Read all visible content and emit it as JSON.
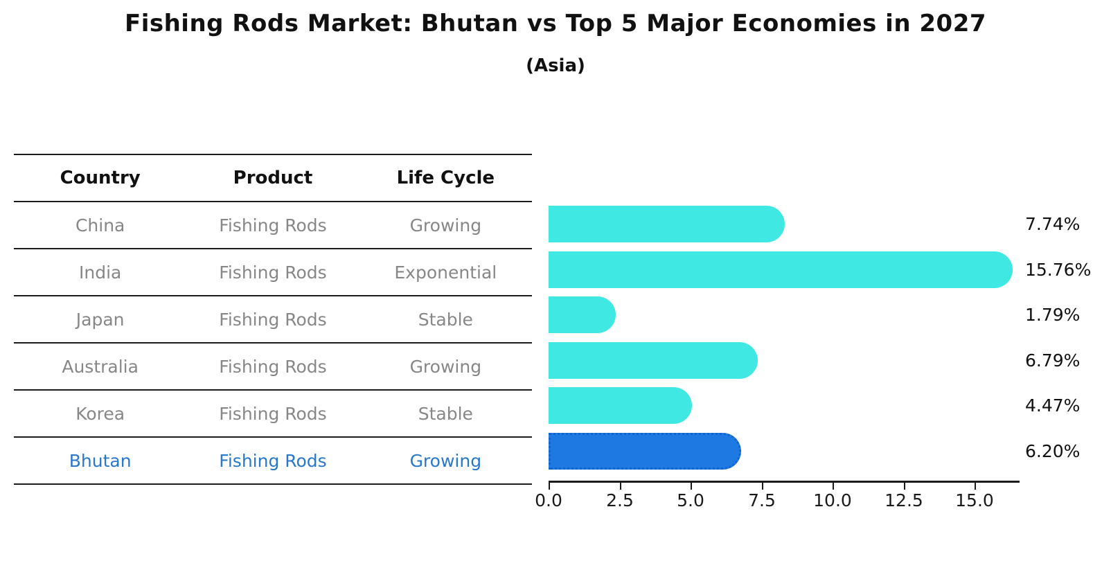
{
  "header": {
    "title": "Fishing Rods Market: Bhutan vs Top 5 Major Economies in 2027",
    "subtitle": "(Asia)"
  },
  "table": {
    "headers": [
      "Country",
      "Product",
      "Life Cycle"
    ],
    "rows": [
      {
        "country": "China",
        "product": "Fishing Rods",
        "life_cycle": "Growing",
        "highlighted": false
      },
      {
        "country": "India",
        "product": "Fishing Rods",
        "life_cycle": "Exponential",
        "highlighted": false
      },
      {
        "country": "Japan",
        "product": "Fishing Rods",
        "life_cycle": "Stable",
        "highlighted": false
      },
      {
        "country": "Australia",
        "product": "Fishing Rods",
        "life_cycle": "Growing",
        "highlighted": false
      },
      {
        "country": "Korea",
        "product": "Fishing Rods",
        "life_cycle": "Stable",
        "highlighted": false
      },
      {
        "country": "Bhutan",
        "product": "Fishing Rods",
        "life_cycle": "Growing",
        "highlighted": true
      }
    ]
  },
  "chart_data": {
    "type": "bar",
    "orientation": "horizontal",
    "title": "Fishing Rods Market: Bhutan vs Top 5 Major Economies in 2027",
    "subtitle": "(Asia)",
    "categories": [
      "China",
      "India",
      "Japan",
      "Australia",
      "Korea",
      "Bhutan"
    ],
    "values": [
      7.74,
      15.76,
      1.79,
      6.79,
      4.47,
      6.2
    ],
    "value_labels": [
      "7.74%",
      "15.76%",
      "1.79%",
      "6.79%",
      "4.47%",
      "6.20%"
    ],
    "xlim": [
      0,
      16.6
    ],
    "xticks": [
      0,
      2.5,
      5,
      7.5,
      10,
      12.5,
      15
    ],
    "xtick_labels": [
      "0.0",
      "2.5",
      "5.0",
      "7.5",
      "10.0",
      "12.5",
      "15.0"
    ],
    "grid": false,
    "legend": false,
    "bar_color": "#40e8e4",
    "highlight_index": 5,
    "highlight_color": "#1e7ae2",
    "highlight_border_color": "#1063cf",
    "highlight_border_style": "dotted",
    "axis_color": "#1a1a1a",
    "text_color": "#111111",
    "muted_text_color": "#878787",
    "highlight_text_color": "#2878cd"
  }
}
